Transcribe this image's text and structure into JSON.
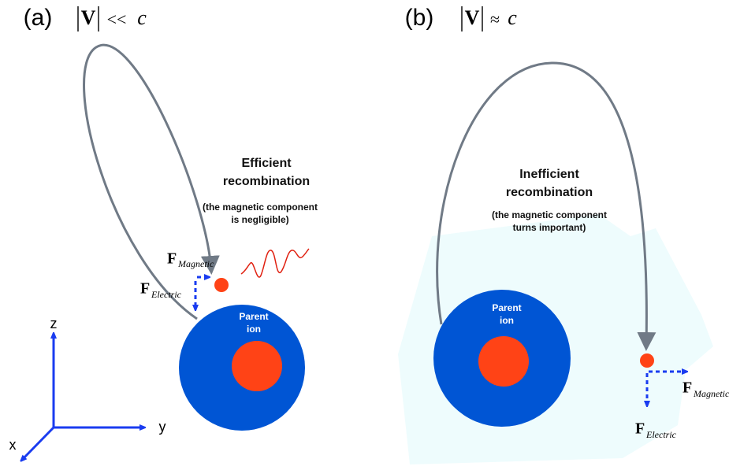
{
  "panels": [
    {
      "label": "(a)",
      "condition": {
        "vector": "V",
        "relation": "<<",
        "constant": "c"
      },
      "heading": [
        "Efficient",
        "recombination"
      ],
      "note": [
        "(the magnetic  component",
        "is negligible)"
      ],
      "ion": [
        "Parent",
        "ion"
      ],
      "forces": {
        "magnetic": {
          "symbol": "F",
          "subscript": "Magnetic"
        },
        "electric": {
          "symbol": "F",
          "subscript": "Electric"
        }
      }
    },
    {
      "label": "(b)",
      "condition": {
        "vector": "V",
        "relation": "≈",
        "constant": "c"
      },
      "heading": [
        "Inefficient",
        "recombination"
      ],
      "note": [
        "(the magnetic component",
        "turns important)"
      ],
      "ion": [
        "Parent",
        "ion"
      ],
      "forces": {
        "magnetic": {
          "symbol": "F",
          "subscript": "Magnetic"
        },
        "electric": {
          "symbol": "F",
          "subscript": "Electric"
        }
      }
    }
  ],
  "axes": {
    "z": "z",
    "y": "y",
    "x": "x"
  }
}
